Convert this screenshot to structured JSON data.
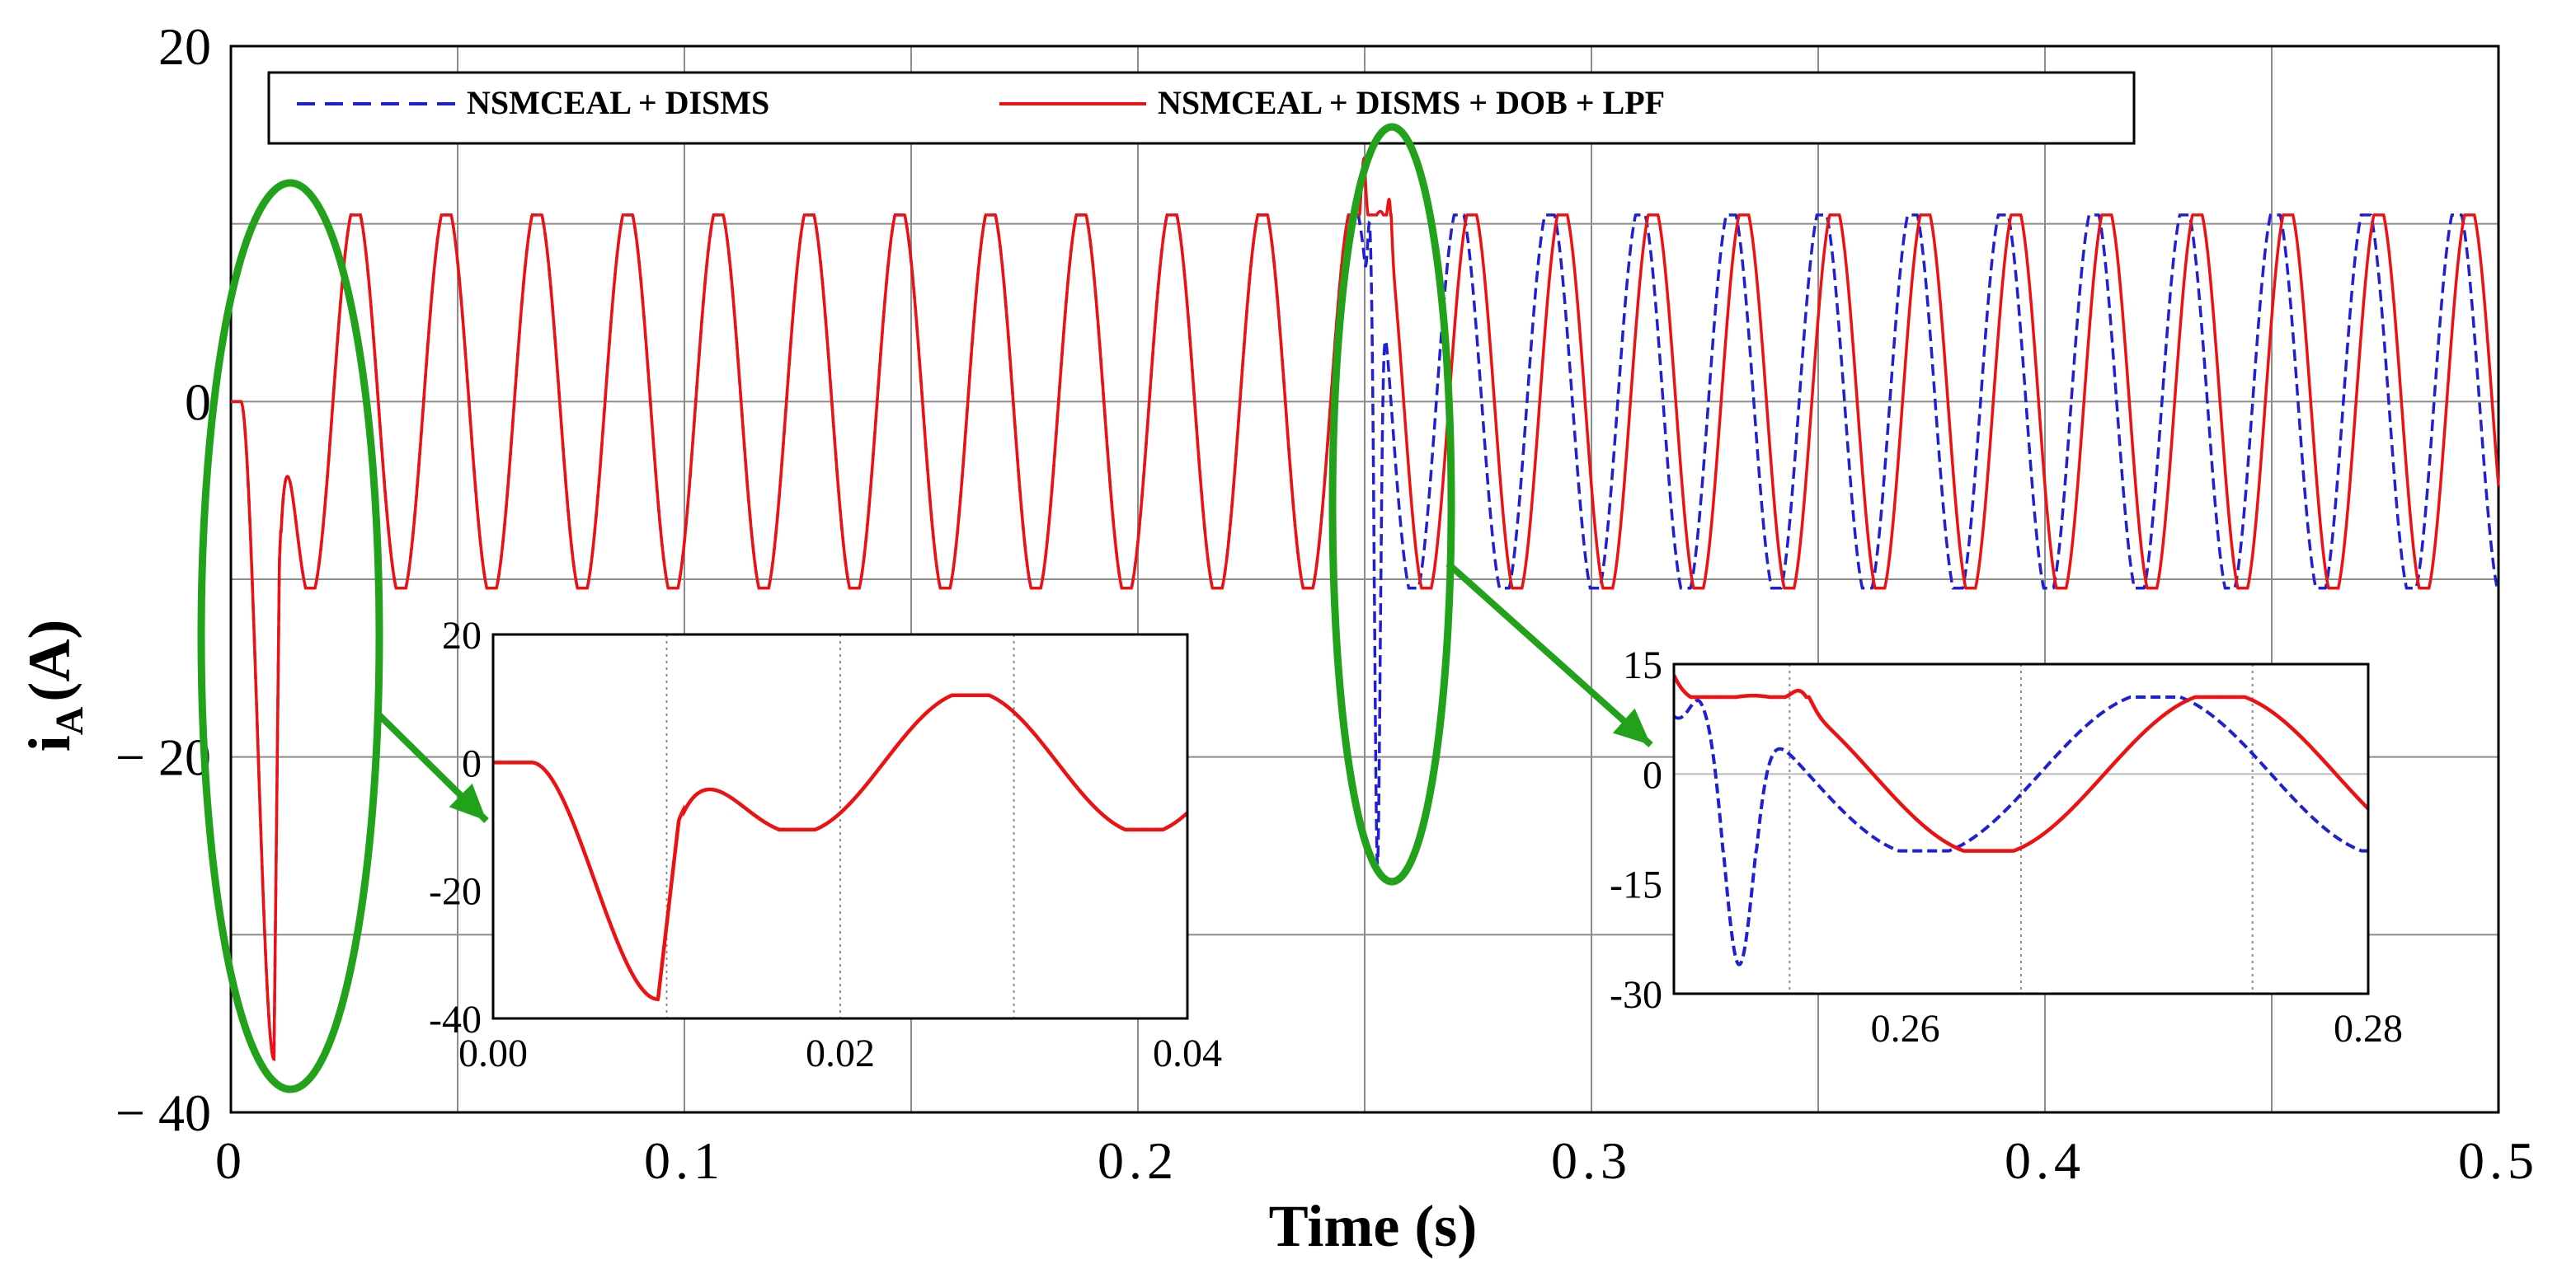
{
  "chart_data": {
    "type": "line",
    "xlabel": "Time (s)",
    "ylabel": "iA (A)",
    "ylabel_main": "i",
    "ylabel_sub": "A",
    "ylabel_unit": "(A)",
    "xlim": [
      0,
      0.5
    ],
    "ylim": [
      -40,
      20
    ],
    "x_ticks": [
      "0",
      "0.1",
      "0.2",
      "0.3",
      "0.4",
      "0.5"
    ],
    "y_ticks": [
      "20",
      "0",
      "− 20",
      "− 40"
    ],
    "grid": true,
    "legend_position": "top",
    "series": [
      {
        "name": "NSMCEAL + DISMS",
        "color": "#1f1fd6",
        "style": "dashed"
      },
      {
        "name": "NSMCEAL + DISMS + DOB + LPF",
        "color": "#ee1111",
        "style": "solid"
      }
    ],
    "signal": {
      "amplitude": 10.5,
      "frequency_hz": 50,
      "disturbance_time": 0.25,
      "startup_dip": -37,
      "startup_dip_time": 0.0095,
      "disturbance_dip_blue": -26,
      "disturbance_dip_red": -10,
      "disturbance_peak_red": 13.5
    },
    "insets": [
      {
        "xlim": [
          0,
          0.04
        ],
        "ylim": [
          -40,
          20
        ],
        "x_ticks": [
          "0.00",
          "0.02",
          "0.04"
        ],
        "y_ticks": [
          "20",
          "0",
          "-20",
          "-40"
        ]
      },
      {
        "xlim": [
          0.25,
          0.28
        ],
        "ylim": [
          -30,
          15
        ],
        "x_ticks": [
          "0.26",
          "0.28"
        ],
        "y_ticks": [
          "15",
          "0",
          "-15",
          "-30"
        ]
      }
    ],
    "highlight_color": "#22a11a"
  }
}
